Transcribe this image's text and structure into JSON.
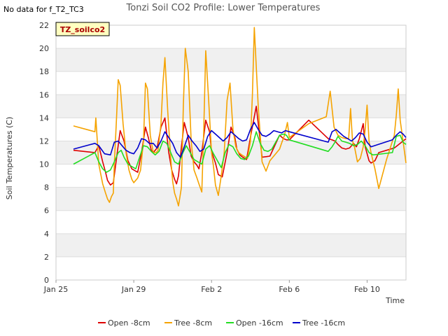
{
  "no_data_note": "No data for f_T2_TC3",
  "chart_data": {
    "type": "line",
    "title": "Tonzi Soil CO2 Profile: Lower Temperatures",
    "xlabel": "Time",
    "ylabel": "Soil Temperatures (C)",
    "badge": "TZ_soilco2",
    "x_ticks": [
      "Jan 25",
      "Jan 29",
      "Feb 2",
      "Feb 6",
      "Feb 10"
    ],
    "x_tick_values": [
      0,
      4,
      8,
      12,
      16
    ],
    "x_unit": "days from Jan 25",
    "xlim": [
      0,
      18
    ],
    "y_ticks": [
      0,
      2,
      4,
      6,
      8,
      10,
      12,
      14,
      16,
      18,
      20,
      22
    ],
    "ylim": [
      0,
      22
    ],
    "grid": true,
    "banded_background": true,
    "legend_position": "bottom",
    "series": [
      {
        "name": "Open -8cm",
        "color": "#dd0000",
        "x": [
          0.9,
          2.0,
          2.2,
          2.4,
          2.55,
          2.65,
          2.8,
          2.95,
          3.15,
          3.3,
          3.5,
          3.7,
          3.9,
          4.0,
          4.1,
          4.2,
          4.4,
          4.6,
          4.75,
          4.9,
          5.0,
          5.1,
          5.2,
          5.4,
          5.6,
          5.8,
          5.95,
          6.1,
          6.2,
          6.3,
          6.45,
          6.6,
          6.8,
          6.95,
          7.1,
          7.25,
          7.35,
          7.5,
          7.7,
          7.9,
          8.0,
          8.2,
          8.35,
          8.55,
          8.8,
          9.0,
          9.2,
          9.3,
          9.45,
          9.6,
          9.8,
          10.05,
          10.3,
          10.6,
          11.0,
          11.5,
          11.7,
          11.85,
          12.0,
          13.0,
          14.0,
          14.2,
          14.35,
          14.5,
          14.7,
          14.9,
          15.1,
          15.3,
          15.45,
          15.6,
          15.8,
          15.9,
          16.1,
          16.2,
          16.4,
          16.6,
          17.0,
          17.4,
          17.55,
          17.7,
          17.85,
          18.0
        ],
        "y": [
          11.2,
          11.0,
          11.6,
          10.2,
          9.3,
          8.6,
          8.2,
          8.4,
          11.0,
          12.9,
          12.0,
          10.3,
          9.6,
          9.5,
          9.4,
          9.3,
          11.0,
          13.2,
          12.3,
          11.2,
          11.0,
          11.2,
          11.4,
          13.2,
          14.0,
          11.0,
          9.5,
          8.7,
          8.3,
          9.0,
          11.5,
          13.6,
          12.3,
          10.7,
          10.2,
          9.9,
          9.6,
          11.0,
          13.8,
          12.8,
          11.1,
          10.1,
          9.1,
          8.9,
          11.0,
          13.2,
          12.3,
          11.3,
          10.8,
          10.6,
          10.4,
          12.8,
          15.0,
          10.6,
          10.7,
          12.5,
          12.2,
          12.1,
          12.1,
          13.8,
          12.2,
          12.1,
          12.0,
          11.7,
          11.4,
          11.3,
          11.4,
          11.8,
          11.5,
          12.2,
          13.5,
          11.5,
          10.3,
          10.1,
          10.3,
          11.0,
          11.2,
          11.4,
          11.6,
          11.8,
          12.0,
          12.2
        ]
      },
      {
        "name": "Tree -8cm",
        "color": "#f5a300",
        "x": [
          0.9,
          2.0,
          2.05,
          2.2,
          2.4,
          2.55,
          2.65,
          2.75,
          2.85,
          2.95,
          3.0,
          3.1,
          3.2,
          3.3,
          3.45,
          3.6,
          3.75,
          3.9,
          4.0,
          4.1,
          4.2,
          4.35,
          4.5,
          4.6,
          4.7,
          4.85,
          5.0,
          5.15,
          5.25,
          5.4,
          5.5,
          5.6,
          5.75,
          5.9,
          6.0,
          6.1,
          6.2,
          6.3,
          6.45,
          6.55,
          6.65,
          6.8,
          6.95,
          7.1,
          7.25,
          7.35,
          7.5,
          7.6,
          7.7,
          7.85,
          8.0,
          8.1,
          8.2,
          8.35,
          8.5,
          8.65,
          8.8,
          8.95,
          9.1,
          9.25,
          9.4,
          9.55,
          9.75,
          9.85,
          10.0,
          10.1,
          10.2,
          10.4,
          10.6,
          10.8,
          11.0,
          11.5,
          11.6,
          11.75,
          11.9,
          12.0,
          13.0,
          13.9,
          14.1,
          14.3,
          14.5,
          14.7,
          14.9,
          15.05,
          15.15,
          15.25,
          15.35,
          15.5,
          15.65,
          15.8,
          15.9,
          16.0,
          16.1,
          16.2,
          16.4,
          16.6,
          17.0,
          17.4,
          17.5,
          17.6,
          17.7,
          17.85,
          18.0
        ],
        "y": [
          13.3,
          12.8,
          14.0,
          10.0,
          8.3,
          7.5,
          7.0,
          6.7,
          7.2,
          7.5,
          10.0,
          13.5,
          17.3,
          16.8,
          13.5,
          11.0,
          9.5,
          8.7,
          8.4,
          8.6,
          8.8,
          9.5,
          12.0,
          17.0,
          16.5,
          12.5,
          11.0,
          11.0,
          11.2,
          13.5,
          17.0,
          19.2,
          14.5,
          10.5,
          8.5,
          7.5,
          7.0,
          6.4,
          8.0,
          15.0,
          20.0,
          18.0,
          12.0,
          9.5,
          8.8,
          8.3,
          7.6,
          13.0,
          19.8,
          15.5,
          11.0,
          9.8,
          8.2,
          7.3,
          9.0,
          11.0,
          15.5,
          17.0,
          13.0,
          11.5,
          11.0,
          10.8,
          10.6,
          10.5,
          12.0,
          16.0,
          21.8,
          15.0,
          10.2,
          9.4,
          10.3,
          11.3,
          11.8,
          12.5,
          13.6,
          12.3,
          13.5,
          14.1,
          16.3,
          13.2,
          12.5,
          12.3,
          12.2,
          12.2,
          14.8,
          12.0,
          11.5,
          10.2,
          10.5,
          11.5,
          13.0,
          15.1,
          12.0,
          11.0,
          9.6,
          7.9,
          10.4,
          12.5,
          14.2,
          16.5,
          13.8,
          12.0,
          10.1
        ]
      },
      {
        "name": "Open -16cm",
        "color": "#22dd22",
        "x": [
          0.9,
          2.0,
          2.2,
          2.4,
          2.6,
          2.8,
          3.0,
          3.2,
          3.35,
          3.5,
          3.7,
          3.9,
          4.1,
          4.3,
          4.5,
          4.7,
          4.9,
          5.1,
          5.3,
          5.5,
          5.7,
          5.9,
          6.1,
          6.3,
          6.5,
          6.7,
          6.9,
          7.1,
          7.3,
          7.5,
          7.7,
          7.9,
          8.1,
          8.3,
          8.5,
          8.7,
          8.9,
          9.1,
          9.3,
          9.5,
          9.7,
          9.9,
          10.1,
          10.3,
          10.5,
          10.7,
          10.9,
          11.1,
          11.5,
          11.7,
          11.85,
          12.0,
          14.0,
          14.2,
          14.35,
          14.5,
          14.7,
          14.9,
          15.1,
          15.3,
          15.5,
          15.7,
          15.9,
          16.1,
          16.3,
          17.3,
          17.5,
          17.7,
          17.85,
          18.0
        ],
        "y": [
          10.0,
          11.0,
          10.2,
          9.6,
          9.3,
          9.5,
          10.2,
          11.0,
          11.2,
          10.6,
          10.0,
          9.8,
          9.6,
          10.6,
          11.6,
          11.5,
          11.1,
          10.8,
          11.1,
          12.0,
          11.8,
          11.0,
          10.2,
          10.0,
          10.9,
          11.6,
          11.0,
          10.4,
          10.2,
          10.0,
          11.3,
          11.6,
          10.9,
          10.3,
          9.7,
          11.0,
          11.7,
          11.5,
          10.9,
          10.5,
          10.4,
          10.7,
          11.6,
          12.8,
          11.8,
          11.2,
          11.1,
          11.3,
          12.5,
          12.6,
          12.5,
          12.1,
          11.1,
          11.5,
          11.9,
          12.4,
          12.0,
          11.9,
          11.8,
          11.6,
          11.7,
          12.0,
          11.6,
          11.0,
          10.8,
          11.0,
          12.4,
          12.5,
          11.9,
          11.7
        ]
      },
      {
        "name": "Tree -16cm",
        "color": "#0000cc",
        "x": [
          0.9,
          2.0,
          2.2,
          2.5,
          2.8,
          3.0,
          3.2,
          3.4,
          3.6,
          3.8,
          4.0,
          4.2,
          4.4,
          4.6,
          4.8,
          5.0,
          5.2,
          5.4,
          5.6,
          5.8,
          6.0,
          6.2,
          6.4,
          6.6,
          6.8,
          7.0,
          7.2,
          7.4,
          7.6,
          7.8,
          8.0,
          8.2,
          8.4,
          8.6,
          8.8,
          9.0,
          9.2,
          9.4,
          9.6,
          9.8,
          10.0,
          10.2,
          10.4,
          10.6,
          10.8,
          11.0,
          11.2,
          11.6,
          11.8,
          12.0,
          14.0,
          14.2,
          14.4,
          14.6,
          14.8,
          15.0,
          15.2,
          15.4,
          15.6,
          15.8,
          16.0,
          16.2,
          17.3,
          17.5,
          17.7,
          17.85,
          18.0
        ],
        "y": [
          11.3,
          11.8,
          11.6,
          10.9,
          10.8,
          11.9,
          12.0,
          11.6,
          11.2,
          11.0,
          10.9,
          11.4,
          12.2,
          12.1,
          11.8,
          11.8,
          11.4,
          12.0,
          12.8,
          12.3,
          11.8,
          11.0,
          10.6,
          11.5,
          12.5,
          12.0,
          11.6,
          11.1,
          11.3,
          12.4,
          12.9,
          12.6,
          12.3,
          12.0,
          12.3,
          12.8,
          12.5,
          12.2,
          12.0,
          12.1,
          13.0,
          13.6,
          13.0,
          12.5,
          12.4,
          12.6,
          12.9,
          12.7,
          12.9,
          12.8,
          11.9,
          12.8,
          13.0,
          12.7,
          12.4,
          12.2,
          12.0,
          12.3,
          12.7,
          12.6,
          11.9,
          11.5,
          12.1,
          12.5,
          12.8,
          12.6,
          12.3
        ]
      }
    ]
  }
}
